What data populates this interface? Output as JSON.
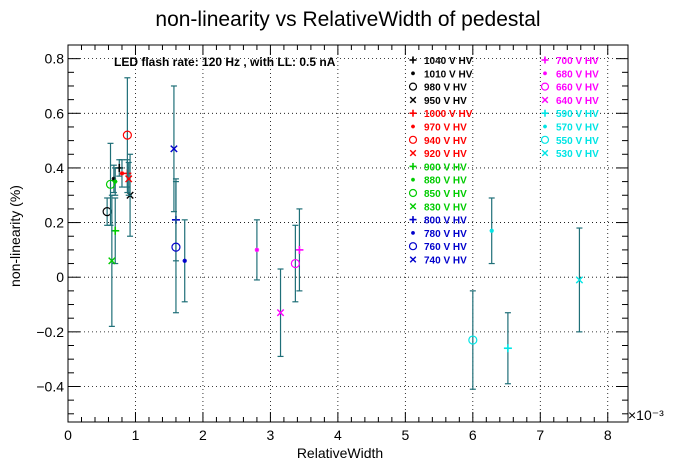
{
  "chart_data": {
    "type": "scatter",
    "title": "non-linearity vs RelativeWidth of pedestal",
    "xlabel": "RelativeWidth",
    "ylabel": "non-linearity (%)",
    "x_exponent_label": "×10⁻³",
    "annotation": "LED flash rate: 120 Hz , with LL: 0.5 nA",
    "xlim": [
      0,
      8.3
    ],
    "ylim": [
      -0.53,
      0.85
    ],
    "x_ticks": [
      "0",
      "1",
      "2",
      "3",
      "4",
      "5",
      "6",
      "7",
      "8"
    ],
    "y_ticks": [
      "−0.4",
      "−0.2",
      "0",
      "0.2",
      "0.4",
      "0.6",
      "0.8"
    ],
    "x_tick_values": [
      0,
      1,
      2,
      3,
      4,
      5,
      6,
      7,
      8
    ],
    "y_tick_values": [
      -0.4,
      -0.2,
      0,
      0.2,
      0.4,
      0.6,
      0.8
    ],
    "grid": true,
    "legend_placement": "top-right, two columns",
    "error_bar_color": "#1f6f78",
    "series": [
      {
        "name": "1040 V HV",
        "color": "#000000",
        "marker": "plus",
        "x": [
          0.76
        ],
        "y": [
          0.4
        ],
        "err": [
          0.03
        ]
      },
      {
        "name": "1010 V HV",
        "color": "#000000",
        "marker": "star",
        "x": [
          0.68
        ],
        "y": [
          0.36
        ],
        "err": [
          0.05
        ]
      },
      {
        "name": "980 V HV",
        "color": "#000000",
        "marker": "circle",
        "x": [
          0.58
        ],
        "y": [
          0.24
        ],
        "err": [
          0.05
        ]
      },
      {
        "name": "950 V HV",
        "color": "#000000",
        "marker": "cross",
        "x": [
          0.92
        ],
        "y": [
          0.3
        ],
        "err": [
          0.15
        ]
      },
      {
        "name": "1000 V HV",
        "color": "#ff0000",
        "marker": "plus",
        "x": [
          0.88
        ],
        "y": [
          0.38
        ],
        "err": [
          0.05
        ]
      },
      {
        "name": "970 V HV",
        "color": "#ff0000",
        "marker": "star",
        "x": [
          0.8
        ],
        "y": [
          0.38
        ],
        "err": [
          0.05
        ]
      },
      {
        "name": "940 V HV",
        "color": "#ff0000",
        "marker": "circle",
        "x": [
          0.88
        ],
        "y": [
          0.52
        ],
        "err": [
          0.21
        ]
      },
      {
        "name": "920 V HV",
        "color": "#ff0000",
        "marker": "cross",
        "x": [
          0.9
        ],
        "y": [
          0.36
        ],
        "err": [
          0.06
        ]
      },
      {
        "name": "900 V HV",
        "color": "#00cc00",
        "marker": "plus",
        "x": [
          0.7
        ],
        "y": [
          0.17
        ],
        "err": [
          0.12
        ]
      },
      {
        "name": "880 V HV",
        "color": "#00cc00",
        "marker": "star",
        "x": [
          0.7
        ],
        "y": [
          0.35
        ],
        "err": [
          0.05
        ]
      },
      {
        "name": "850 V HV",
        "color": "#00cc00",
        "marker": "circle",
        "x": [
          0.63
        ],
        "y": [
          0.34
        ],
        "err": [
          0.15
        ]
      },
      {
        "name": "830 V HV",
        "color": "#00cc00",
        "marker": "cross",
        "x": [
          0.65
        ],
        "y": [
          0.06
        ],
        "err": [
          0.24
        ]
      },
      {
        "name": "800 V HV",
        "color": "#0000cc",
        "marker": "plus",
        "x": [
          1.6
        ],
        "y": [
          0.21
        ],
        "err": [
          0.15
        ]
      },
      {
        "name": "780 V HV",
        "color": "#0000cc",
        "marker": "star",
        "x": [
          1.73
        ],
        "y": [
          0.06
        ],
        "err": [
          0.15
        ]
      },
      {
        "name": "760 V HV",
        "color": "#0000cc",
        "marker": "circle",
        "x": [
          1.6
        ],
        "y": [
          0.11
        ],
        "err": [
          0.24
        ]
      },
      {
        "name": "740 V HV",
        "color": "#0000cc",
        "marker": "cross",
        "x": [
          1.57
        ],
        "y": [
          0.47
        ],
        "err": [
          0.23
        ]
      },
      {
        "name": "700 V HV",
        "color": "#ff00ff",
        "marker": "plus",
        "x": [
          3.43
        ],
        "y": [
          0.1
        ],
        "err": [
          0.15
        ]
      },
      {
        "name": "680 V HV",
        "color": "#ff00ff",
        "marker": "star",
        "x": [
          2.8
        ],
        "y": [
          0.1
        ],
        "err": [
          0.11
        ]
      },
      {
        "name": "660 V HV",
        "color": "#ff00ff",
        "marker": "circle",
        "x": [
          3.37
        ],
        "y": [
          0.05
        ],
        "err": [
          0.14
        ]
      },
      {
        "name": "640 V HV",
        "color": "#ff00ff",
        "marker": "cross",
        "x": [
          3.15
        ],
        "y": [
          -0.13
        ],
        "err": [
          0.16
        ]
      },
      {
        "name": "590 V HV",
        "color": "#00e5e5",
        "marker": "plus",
        "x": [
          6.52
        ],
        "y": [
          -0.26
        ],
        "err": [
          0.13
        ]
      },
      {
        "name": "570 V HV",
        "color": "#00e5e5",
        "marker": "star",
        "x": [
          6.28
        ],
        "y": [
          0.17
        ],
        "err": [
          0.12
        ]
      },
      {
        "name": "550 V HV",
        "color": "#00e5e5",
        "marker": "circle",
        "x": [
          6.0
        ],
        "y": [
          -0.23
        ],
        "err": [
          0.18
        ]
      },
      {
        "name": "530 V HV",
        "color": "#00e5e5",
        "marker": "cross",
        "x": [
          7.58
        ],
        "y": [
          -0.01
        ],
        "err": [
          0.19
        ]
      }
    ]
  }
}
